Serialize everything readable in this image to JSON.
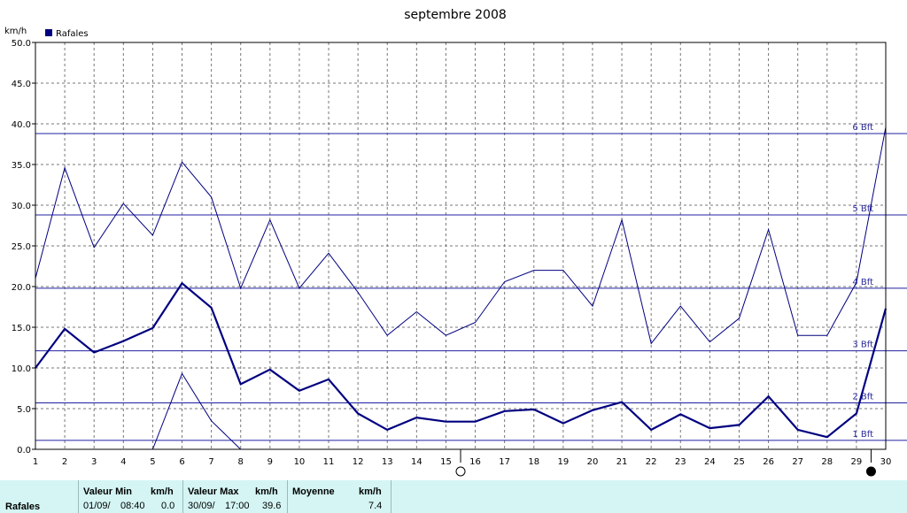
{
  "chart_data": {
    "type": "line",
    "title": "septembre 2008",
    "ylabel": "km/h",
    "xlabel": "",
    "x": [
      1,
      2,
      3,
      4,
      5,
      6,
      7,
      8,
      9,
      10,
      11,
      12,
      13,
      14,
      15,
      16,
      17,
      18,
      19,
      20,
      21,
      22,
      23,
      24,
      25,
      26,
      27,
      28,
      29,
      30
    ],
    "xlim": [
      1,
      30
    ],
    "ylim": [
      0,
      50
    ],
    "y_ticks": [
      "0.0",
      "5.0",
      "10.0",
      "15.0",
      "20.0",
      "25.0",
      "30.0",
      "35.0",
      "40.0",
      "45.0",
      "50.0"
    ],
    "x_ticks": [
      "1",
      "2",
      "3",
      "4",
      "5",
      "6",
      "7",
      "8",
      "9",
      "10",
      "11",
      "12",
      "13",
      "14",
      "15",
      "16",
      "17",
      "18",
      "19",
      "20",
      "21",
      "22",
      "23",
      "24",
      "25",
      "26",
      "27",
      "28",
      "29",
      "30"
    ],
    "grid": true,
    "legend": {
      "position": "top-left",
      "entries": [
        "Rafales"
      ]
    },
    "series_color": "#000080",
    "series": [
      {
        "name": "Rafales",
        "role": "max",
        "values": [
          21.0,
          34.6,
          24.8,
          30.2,
          26.3,
          35.3,
          31.0,
          19.8,
          28.2,
          19.8,
          24.1,
          19.3,
          14.0,
          16.9,
          14.0,
          15.6,
          20.6,
          22.0,
          22.0,
          17.6,
          28.2,
          13.0,
          17.6,
          13.2,
          16.1,
          27.0,
          14.0,
          14.0,
          20.5,
          39.6
        ]
      },
      {
        "role": "mean",
        "values": [
          10.0,
          14.8,
          11.9,
          13.3,
          14.9,
          20.4,
          17.4,
          8.0,
          9.8,
          7.2,
          8.6,
          4.4,
          2.4,
          3.9,
          3.4,
          3.4,
          4.7,
          4.9,
          3.2,
          4.8,
          5.8,
          2.4,
          4.3,
          2.6,
          3.0,
          6.5,
          2.4,
          1.5,
          4.4,
          17.3
        ]
      },
      {
        "role": "min",
        "values": [
          null,
          null,
          null,
          null,
          0.0,
          9.3,
          3.5,
          0.0,
          null,
          null,
          null,
          null,
          null,
          null,
          null,
          null,
          null,
          null,
          null,
          null,
          null,
          null,
          null,
          null,
          null,
          null,
          null,
          null,
          null,
          null
        ]
      }
    ],
    "annotations": [
      {
        "label": "6 Bft",
        "y": 38.8
      },
      {
        "label": "5 Bft",
        "y": 28.8
      },
      {
        "label": "4 Bft",
        "y": 19.8
      },
      {
        "label": "3 Bft",
        "y": 12.1
      },
      {
        "label": "2 Bft",
        "y": 5.7
      },
      {
        "label": "1 Bft",
        "y": 1.1
      }
    ],
    "moon_phases": [
      {
        "x": 15.5,
        "phase": "full"
      },
      {
        "x": 29.5,
        "phase": "new"
      }
    ]
  },
  "summary": {
    "series_label": "Rafales",
    "min": {
      "header": "Valeur Min",
      "unit": "km/h",
      "date": "01/09/",
      "time": "08:40",
      "value": "0.0"
    },
    "max": {
      "header": "Valeur Max",
      "unit": "km/h",
      "date": "30/09/",
      "time": "17:00",
      "value": "39.6"
    },
    "mean": {
      "header": "Moyenne",
      "unit": "km/h",
      "value": "7.4"
    }
  }
}
